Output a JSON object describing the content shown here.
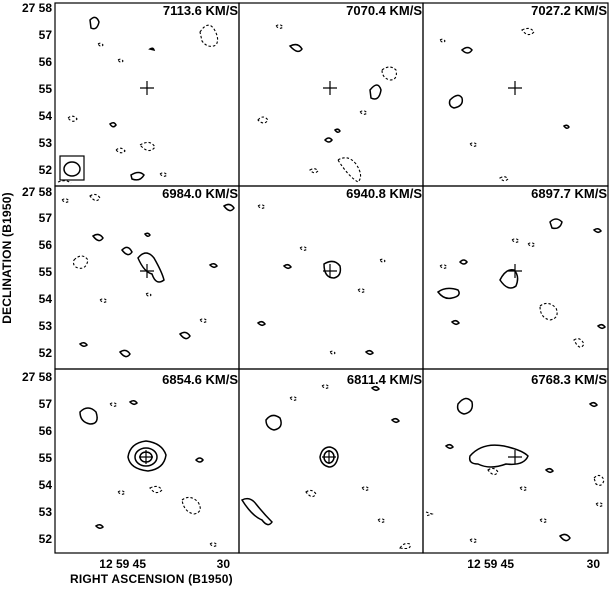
{
  "figure": {
    "ylabel": "DECLINATION (B1950)",
    "xlabel": "RIGHT ASCENSION (B1950)",
    "dec_prefix": "27 58",
    "dec_ticks": [
      "57",
      "56",
      "55",
      "54",
      "53",
      "52"
    ],
    "ra_ticks": [
      "12 59 45",
      "30"
    ]
  },
  "panels": [
    {
      "velocity": "7113.6 KM/S"
    },
    {
      "velocity": "7070.4 KM/S"
    },
    {
      "velocity": "7027.2 KM/S"
    },
    {
      "velocity": "6984.0 KM/S"
    },
    {
      "velocity": "6940.8 KM/S"
    },
    {
      "velocity": "6897.7 KM/S"
    },
    {
      "velocity": "6854.6 KM/S"
    },
    {
      "velocity": "6811.4 KM/S"
    },
    {
      "velocity": "6768.3 KM/S"
    }
  ]
}
